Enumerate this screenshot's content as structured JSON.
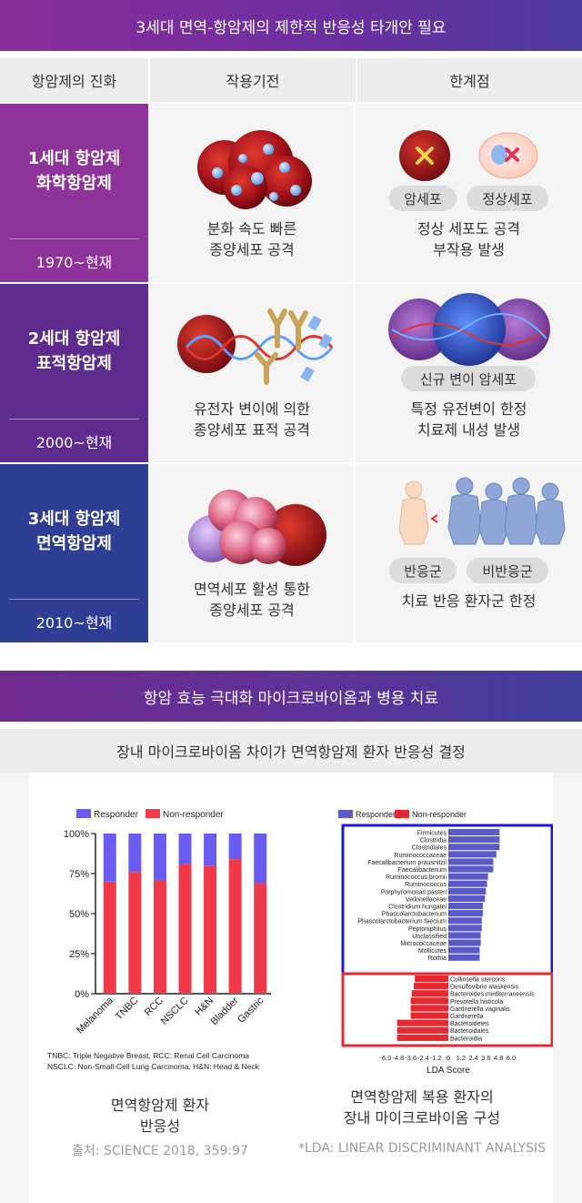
{
  "banner_top": "3세대 면역-항암제의 제한적 반응성 타개안 필요",
  "table": {
    "headers": [
      "항암제의 진화",
      "작용기전",
      "한계점"
    ],
    "rows": [
      {
        "name": "1세대 항암제\n화학항암제",
        "year": "1970~현재",
        "mechanism": "분화 속도 빠른\n종양세포 공격",
        "pills": [
          "암세포",
          "정상세포"
        ],
        "limit": "정상 세포도 공격\n부작용 발생",
        "color": "#8d3399"
      },
      {
        "name": "2세대 항암제\n표적항암제",
        "year": "2000~현재",
        "mechanism": "유전자 변이에 의한\n종양세포 표적 공격",
        "pills": [
          "신규 변이 암세포"
        ],
        "limit": "특정 유전변이 한정\n치료제 내성 발생",
        "color": "#5e2c8e"
      },
      {
        "name": "3세대 항암제\n면역항암제",
        "year": "2010~현재",
        "mechanism": "면역세포 활성 통한\n종양세포 공격",
        "pills": [
          "반응군",
          "비반응군"
        ],
        "limit": "치료 반응 환자군 한정",
        "color": "#2e3e95"
      }
    ]
  },
  "banner_bottom": "항암 효능 극대화 마이크로바이옴과 병용 치료",
  "subheader": "장내 마이크로바이옴 차이가 면역항암제 환자 반응성 결정",
  "chart_data": [
    {
      "type": "bar",
      "stacked": true,
      "legend": [
        "Responder",
        "Non-responder"
      ],
      "colors": {
        "responder": "#6a5cf0",
        "non_responder": "#f2394a"
      },
      "categories": [
        "Melanoma",
        "TNBC",
        "RCC",
        "NSCLC",
        "H&N",
        "Bladder",
        "Gastric"
      ],
      "series": [
        {
          "name": "Non-responder",
          "values": [
            70,
            76,
            71,
            81,
            80,
            84,
            69
          ]
        },
        {
          "name": "Responder",
          "values": [
            30,
            24,
            29,
            19,
            20,
            16,
            31
          ]
        }
      ],
      "ylim": [
        0,
        100
      ],
      "yticks": [
        "0%",
        "25%",
        "50%",
        "75%",
        "100%"
      ],
      "notes": [
        "TNBC: Triple Negative Breast, RCC: Renal Cell Carcinoma",
        "NSCLC: Non-Small-Cell Lung Carcinoma, H&N: Head & Neck"
      ]
    },
    {
      "type": "bar",
      "orientation": "horizontal",
      "legend": [
        "Responder",
        "Non-responder"
      ],
      "colors": {
        "responder": "#5b58c8",
        "non_responder": "#e8262d"
      },
      "xlabel": "LDA Score",
      "xticks": [
        "-6.0",
        "-4.8",
        "-3.6",
        "-2.4",
        "-1.2",
        "0",
        "1.2",
        "2.4",
        "3.6",
        "4.8",
        "6.0"
      ],
      "xlim": [
        -6,
        6
      ],
      "responder": [
        {
          "label": "Firmicutes",
          "value": 4.9
        },
        {
          "label": "Clostridia",
          "value": 4.9
        },
        {
          "label": "Clostridiales",
          "value": 4.9
        },
        {
          "label": "Ruminococcaceae",
          "value": 4.6
        },
        {
          "label": "Faecalibacterium prausnitzii",
          "value": 4.3
        },
        {
          "label": "Faecalibacterium",
          "value": 4.3
        },
        {
          "label": "Ruminococcus bromii",
          "value": 3.8
        },
        {
          "label": "Ruminococcus",
          "value": 3.7
        },
        {
          "label": "Porphyromonas pasteri",
          "value": 3.6
        },
        {
          "label": "Veilonellaceae",
          "value": 3.5
        },
        {
          "label": "Clostridium hungatei",
          "value": 3.3
        },
        {
          "label": "Phascolarctobacterium",
          "value": 3.3
        },
        {
          "label": "Phascolarctobacterium faecium",
          "value": 3.2
        },
        {
          "label": "Peptoniphilus",
          "value": 3.2
        },
        {
          "label": "Unclassified",
          "value": 3.1
        },
        {
          "label": "Micrococcaceae",
          "value": 3.1
        },
        {
          "label": "Mollicutes",
          "value": 3.0
        },
        {
          "label": "Rothia",
          "value": 3.0
        }
      ],
      "non_responder": [
        {
          "label": "Collinsella stercoris",
          "value": -3.2
        },
        {
          "label": "Desulfovibrio alaskensis",
          "value": -3.3
        },
        {
          "label": "Bacteroides mediterraneensis",
          "value": -3.5
        },
        {
          "label": "Prevotella histicola",
          "value": -3.6
        },
        {
          "label": "Gardnerella vaginalis",
          "value": -3.6
        },
        {
          "label": "Gardnerella",
          "value": -3.6
        },
        {
          "label": "Bacteroidetes",
          "value": -4.9
        },
        {
          "label": "Bacteroidales",
          "value": -4.9
        },
        {
          "label": "Bacteroidia",
          "value": -4.9
        }
      ]
    }
  ],
  "captions": {
    "left": "면역항암제 환자\n반응성",
    "right": "면역항암제 복용 환자의\n장내 마이크로바이옴 구성",
    "left_source": "출처: SCIENCE 2018, 359:97",
    "right_source": "*LDA: LINEAR DISCRIMINANT ANALYSIS"
  }
}
